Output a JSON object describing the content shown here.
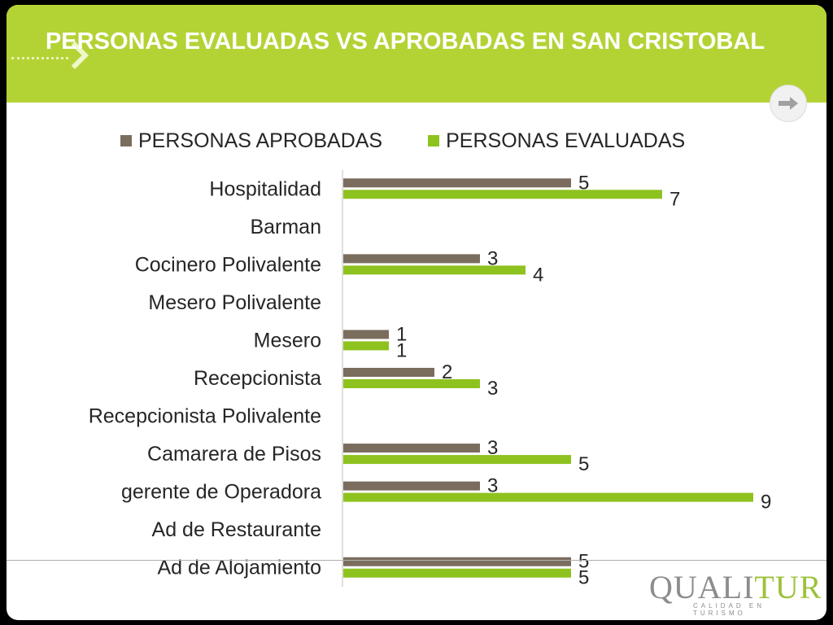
{
  "slide": {
    "title": "PERSONAS EVALUADAS VS APROBADAS EN SAN CRISTOBAL",
    "logo_text_left": "QUALI",
    "logo_text_right": "TUR",
    "logo_tagline": "CALIDAD EN TURISMO",
    "icons": [
      "chevron-right-icon",
      "next-arrow-icon"
    ]
  },
  "colors": {
    "header": "#b3d335",
    "series_aprobadas": "#7a6d5e",
    "series_evaluadas": "#8ec21f"
  },
  "chart_data": {
    "type": "bar",
    "orientation": "horizontal",
    "title": "PERSONAS EVALUADAS VS APROBADAS EN SAN CRISTOBAL",
    "categories": [
      "Hospitalidad",
      "Barman",
      "Cocinero Polivalente",
      "Mesero Polivalente",
      "Mesero",
      "Recepcionista",
      "Recepcionista Polivalente",
      "Camarera de Pisos",
      "gerente de Operadora",
      "Ad de Restaurante",
      "Ad de Alojamiento"
    ],
    "series": [
      {
        "name": "PERSONAS APROBADAS",
        "values": [
          5,
          null,
          3,
          null,
          1,
          2,
          null,
          3,
          3,
          null,
          5
        ]
      },
      {
        "name": "PERSONAS EVALUADAS",
        "values": [
          7,
          null,
          4,
          null,
          1,
          3,
          null,
          5,
          9,
          null,
          5
        ]
      }
    ],
    "xlim": [
      0,
      9
    ],
    "data_labels": true,
    "legend_position": "top",
    "grid": false
  }
}
